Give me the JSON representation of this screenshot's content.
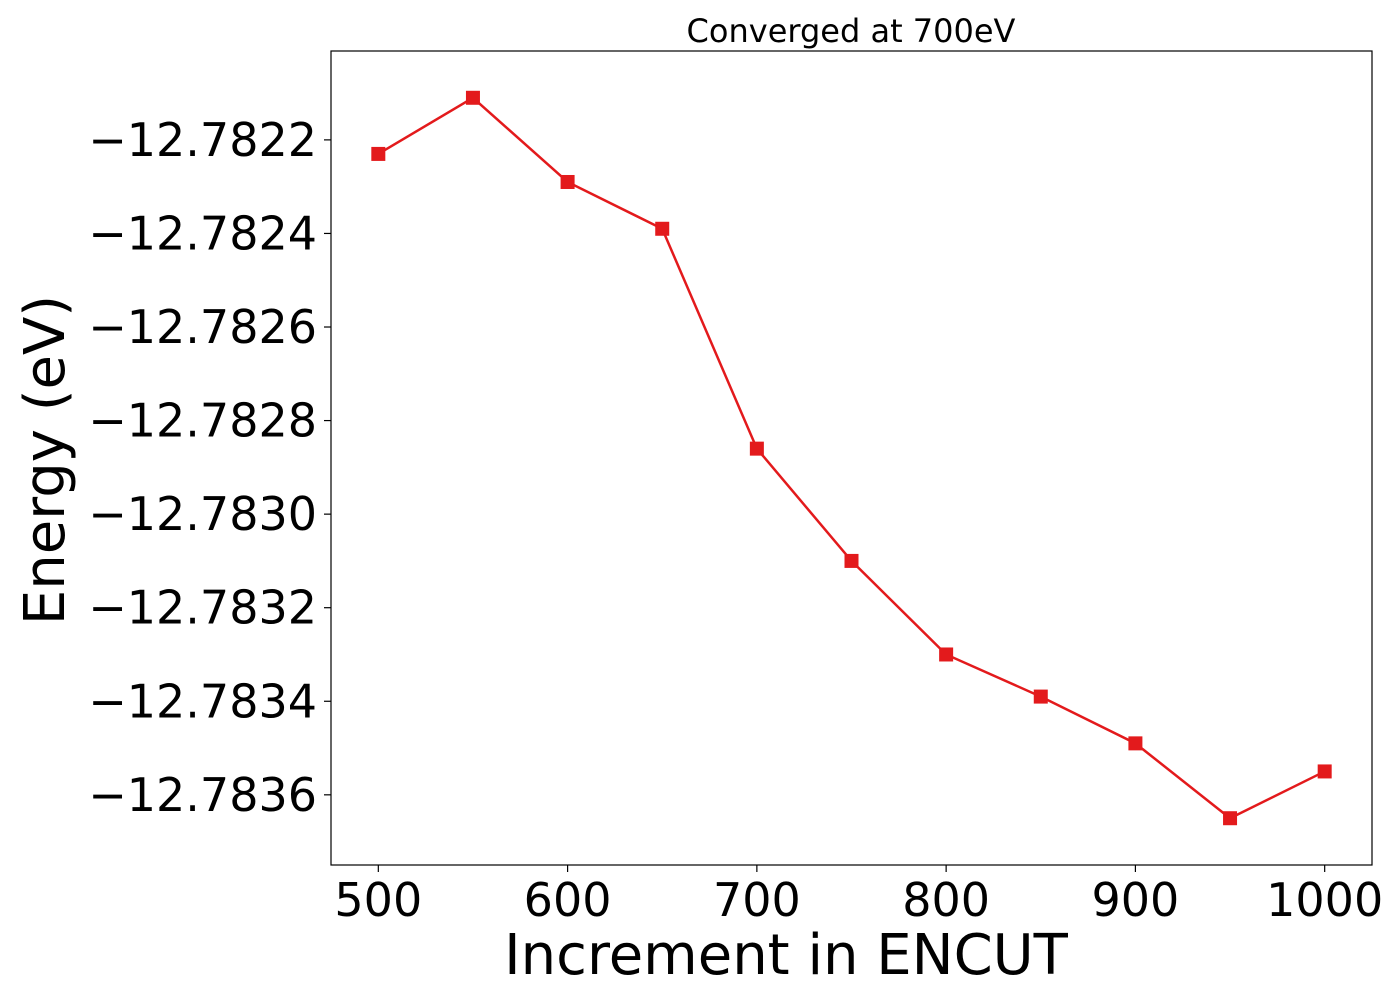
{
  "chart_data": {
    "type": "line",
    "title": "Converged at 700eV",
    "xlabel": "Increment in ENCUT",
    "ylabel": "Energy (eV)",
    "xlim": [
      475,
      1025
    ],
    "ylim": [
      -12.78375,
      -12.78201
    ],
    "xticks": [
      500,
      600,
      700,
      800,
      900,
      1000
    ],
    "yticks": [
      -12.7822,
      -12.7824,
      -12.7826,
      -12.7828,
      -12.783,
      -12.7832,
      -12.7834,
      -12.7836
    ],
    "ytick_labels": [
      "−12.7822",
      "−12.7824",
      "−12.7826",
      "−12.7828",
      "−12.7830",
      "−12.7832",
      "−12.7834",
      "−12.7836"
    ],
    "grid": false,
    "series": [
      {
        "color": "#e31a1c",
        "marker": "square",
        "x": [
          500,
          550,
          600,
          650,
          700,
          750,
          800,
          850,
          900,
          950,
          1000
        ],
        "y": [
          -12.78223,
          -12.78211,
          -12.78229,
          -12.78239,
          -12.78286,
          -12.7831,
          -12.7833,
          -12.78339,
          -12.78349,
          -12.78365,
          -12.78355
        ]
      }
    ]
  }
}
